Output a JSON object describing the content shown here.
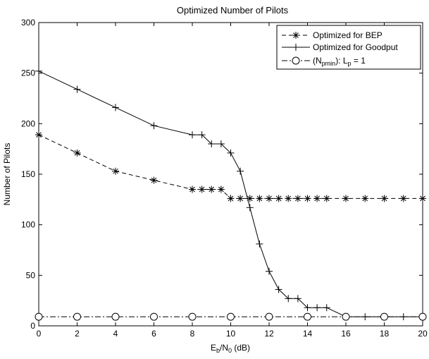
{
  "chart_data": {
    "type": "line",
    "title": "Optimized Number of Pilots",
    "xlabel": {
      "main": "E",
      "sub1": "b",
      "mid": "/N",
      "sub2": "0",
      "tail": " (dB)"
    },
    "ylabel": "Number of Pilots",
    "xlim": [
      0,
      20
    ],
    "ylim": [
      0,
      300
    ],
    "xticks": [
      0,
      2,
      4,
      6,
      8,
      10,
      12,
      14,
      16,
      18,
      20
    ],
    "yticks": [
      0,
      50,
      100,
      150,
      200,
      250,
      300
    ],
    "grid": false,
    "legend_position": "top-right",
    "series": [
      {
        "name": "Optimized for BEP",
        "line_style": "dashed",
        "marker": "asterisk",
        "x": [
          0,
          2,
          4,
          6,
          8,
          8.5,
          9,
          9.5,
          10,
          10.5,
          11,
          11.5,
          12,
          12.5,
          13,
          13.5,
          14,
          14.5,
          15,
          16,
          17,
          18,
          19,
          20
        ],
        "y": [
          189,
          171,
          153,
          144,
          135,
          135,
          135,
          135,
          126,
          126,
          126,
          126,
          126,
          126,
          126,
          126,
          126,
          126,
          126,
          126,
          126,
          126,
          126,
          126
        ]
      },
      {
        "name": "Optimized for Goodput",
        "line_style": "solid",
        "marker": "plus",
        "x": [
          0,
          2,
          4,
          6,
          8,
          8.5,
          9,
          9.5,
          10,
          10.5,
          11,
          11.5,
          12,
          12.5,
          13,
          13.5,
          14,
          14.5,
          15,
          16,
          17,
          18,
          19,
          20
        ],
        "y": [
          252,
          234,
          216,
          198,
          189,
          189,
          180,
          180,
          171,
          153,
          117,
          81,
          54,
          36,
          27,
          27,
          18,
          18,
          18,
          9,
          9,
          9,
          9,
          9
        ]
      },
      {
        "name_parts": {
          "open": "(N",
          "sub": "pmin",
          "mid": "): L",
          "sub2": "p",
          "tail": " = 1"
        },
        "line_style": "dashdot",
        "marker": "circle",
        "x": [
          0,
          2,
          4,
          6,
          8,
          10,
          12,
          14,
          16,
          18,
          20
        ],
        "y": [
          9,
          9,
          9,
          9,
          9,
          9,
          9,
          9,
          9,
          9,
          9
        ]
      }
    ]
  }
}
